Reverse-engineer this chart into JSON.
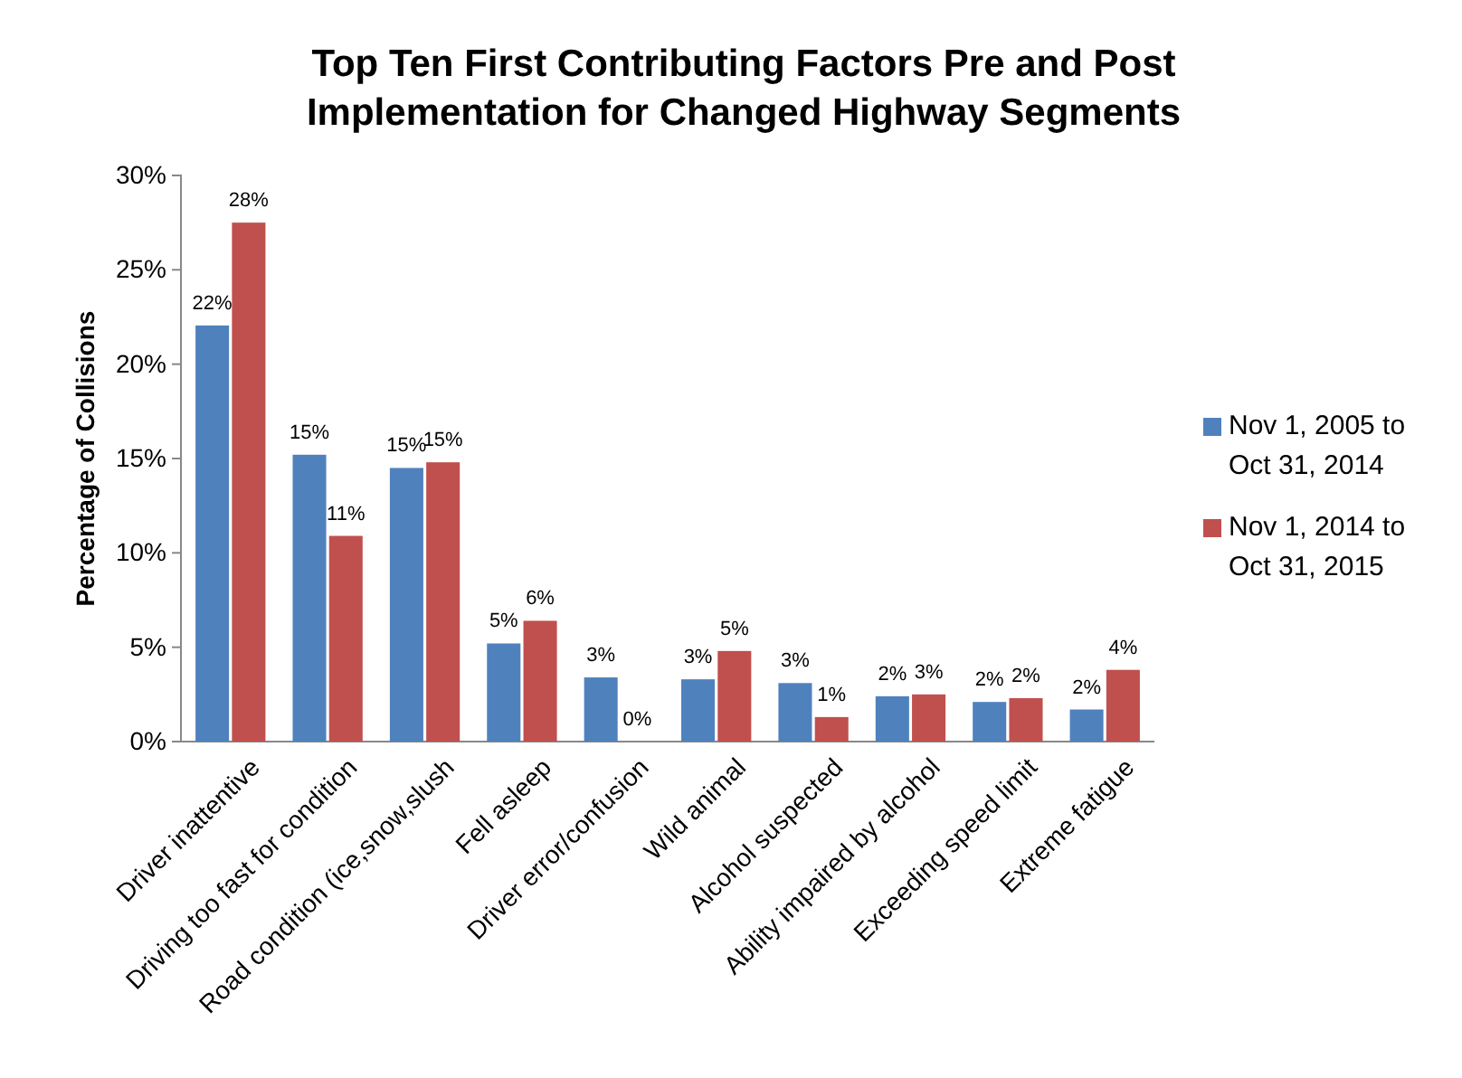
{
  "chart_data": {
    "type": "bar",
    "title": "Top Ten First Contributing Factors Pre and Post Implementation for Changed Highway Segments",
    "ylabel": "Percentage of Collisions",
    "categories": [
      "Driver inattentive",
      "Driving too fast for condition",
      "Road condition (ice,snow,slush",
      "Fell asleep",
      "Driver error/confusion",
      "Wild animal",
      "Alcohol suspected",
      "Ability impaired by alcohol",
      "Exceeding speed limit",
      "Extreme fatigue"
    ],
    "series": [
      {
        "name": "Nov 1, 2005 to Oct 31, 2014",
        "color": "#4f81bd",
        "values": [
          22.05,
          15.2,
          14.5,
          5.2,
          3.4,
          3.3,
          3.1,
          2.4,
          2.1,
          1.7
        ],
        "value_labels": [
          "22%",
          "15%",
          "15%",
          "5%",
          "3%",
          "3%",
          "3%",
          "2%",
          "2%",
          "2%"
        ]
      },
      {
        "name": "Nov 1, 2014 to Oct 31, 2015",
        "color": "#c0504d",
        "values": [
          27.5,
          10.9,
          14.8,
          6.4,
          0,
          4.8,
          1.3,
          2.5,
          2.3,
          3.8
        ],
        "value_labels": [
          "28%",
          "11%",
          "15%",
          "6%",
          "0%",
          "5%",
          "1%",
          "3%",
          "2%",
          "4%"
        ]
      }
    ],
    "ylim": [
      0,
      30
    ],
    "yticks": [
      {
        "value": 0,
        "label": "0%"
      },
      {
        "value": 5,
        "label": "5%"
      },
      {
        "value": 10,
        "label": "10%"
      },
      {
        "value": 15,
        "label": "15%"
      },
      {
        "value": 20,
        "label": "20%"
      },
      {
        "value": 25,
        "label": "25%"
      },
      {
        "value": 30,
        "label": "30%"
      }
    ],
    "legend": "right",
    "grid": false
  }
}
